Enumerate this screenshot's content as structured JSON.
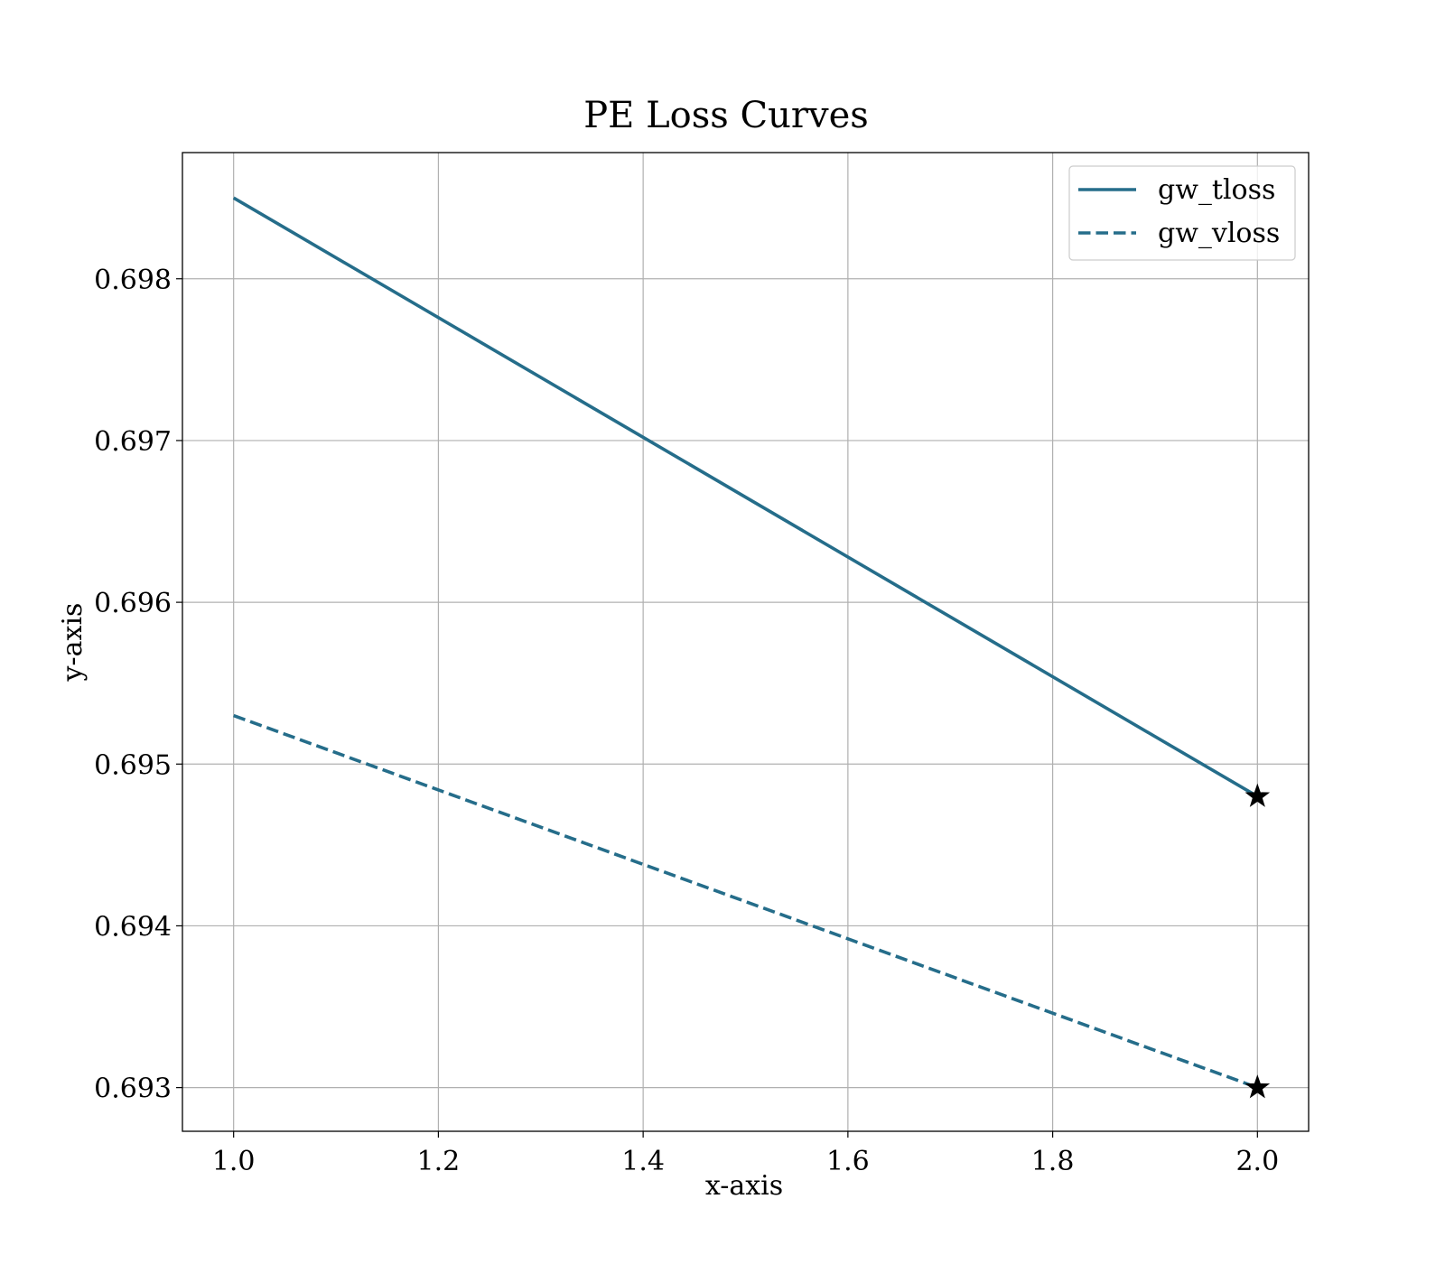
{
  "chart_data": {
    "type": "line",
    "title": "PE Loss Curves",
    "xlabel": "x-axis",
    "ylabel": "y-axis",
    "xlim": [
      0.95,
      2.05
    ],
    "ylim": [
      0.69273,
      0.69878
    ],
    "x_ticks": [
      1.0,
      1.2,
      1.4,
      1.6,
      1.8,
      2.0
    ],
    "x_tick_labels": [
      "1.0",
      "1.2",
      "1.4",
      "1.6",
      "1.8",
      "2.0"
    ],
    "y_ticks": [
      0.693,
      0.694,
      0.695,
      0.696,
      0.697,
      0.698
    ],
    "y_tick_labels": [
      "0.693",
      "0.694",
      "0.695",
      "0.696",
      "0.697",
      "0.698"
    ],
    "grid": true,
    "legend_position": "top-right",
    "x": [
      1.0,
      2.0
    ],
    "series": [
      {
        "name": "gw_tloss",
        "values": [
          0.6985,
          0.6948
        ],
        "color": "#256d8a",
        "line_style": "solid",
        "end_marker": "star"
      },
      {
        "name": "gw_vloss",
        "values": [
          0.6953,
          0.693
        ],
        "color": "#256d8a",
        "line_style": "dashed",
        "end_marker": "star"
      }
    ]
  }
}
